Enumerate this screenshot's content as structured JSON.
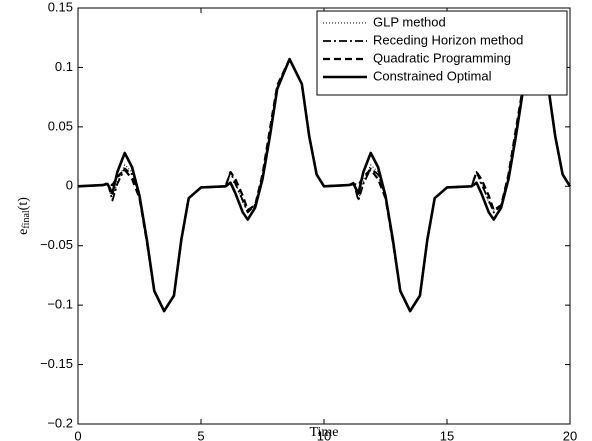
{
  "chart_data": {
    "type": "line",
    "xlabel": "Time",
    "ylabel": [
      "e",
      "final",
      "(t)"
    ],
    "x": [
      0,
      1,
      1.2,
      1.4,
      1.6,
      1.9,
      2.2,
      2.5,
      2.8,
      3.1,
      3.5,
      3.9,
      4.2,
      4.5,
      5,
      6,
      6.2,
      6.4,
      6.7,
      6.9,
      7.2,
      7.5,
      7.8,
      8.1,
      8.6,
      9.1,
      9.4,
      9.7,
      10,
      11,
      11.2,
      11.4,
      11.6,
      11.9,
      12.2,
      12.5,
      12.8,
      13.1,
      13.5,
      13.9,
      14.2,
      14.5,
      15,
      16,
      16.2,
      16.4,
      16.7,
      16.9,
      17.2,
      17.5,
      17.8,
      18.1,
      18.6,
      19.1,
      19.4,
      19.7,
      20
    ],
    "xlim": [
      0,
      20
    ],
    "xticks": [
      0,
      5,
      10,
      15,
      20
    ],
    "ylim": [
      -0.2,
      0.15
    ],
    "yticks": [
      {
        "value": -0.2,
        "label": "−0.2"
      },
      {
        "value": -0.15,
        "label": "−0.15"
      },
      {
        "value": -0.1,
        "label": "−0.1"
      },
      {
        "value": -0.05,
        "label": "−0.05"
      },
      0,
      0.05,
      0.1,
      0.15
    ],
    "legend": "upper right",
    "series": [
      {
        "name": "GLP method",
        "color": "#000000",
        "linestyle": "dotted",
        "values": [
          0,
          0.001,
          0.002,
          -0.012,
          0.004,
          0.018,
          0.012,
          -0.008,
          -0.045,
          -0.088,
          -0.105,
          -0.092,
          -0.045,
          -0.01,
          -0.001,
          0,
          0.002,
          0.004,
          -0.014,
          -0.02,
          -0.015,
          0.006,
          0.042,
          0.082,
          0.107,
          0.086,
          0.042,
          0.01,
          0,
          0.001,
          0.002,
          -0.012,
          0.004,
          0.018,
          0.012,
          -0.008,
          -0.045,
          -0.088,
          -0.105,
          -0.092,
          -0.045,
          -0.01,
          -0.001,
          0,
          0.002,
          0.004,
          -0.014,
          -0.02,
          -0.015,
          0.006,
          0.042,
          0.082,
          0.107,
          0.086,
          0.042,
          0.01,
          0
        ]
      },
      {
        "name": "Receding Horizon method",
        "color": "#000000",
        "linestyle": "dashdot",
        "values": [
          0,
          0.001,
          0.003,
          -0.012,
          0.002,
          0.015,
          0.01,
          -0.008,
          -0.046,
          -0.088,
          -0.105,
          -0.092,
          -0.045,
          -0.01,
          -0.001,
          0,
          0.012,
          0.002,
          -0.012,
          -0.022,
          -0.016,
          0.008,
          0.045,
          0.083,
          0.107,
          0.086,
          0.042,
          0.01,
          0,
          0.001,
          0.003,
          -0.012,
          0.002,
          0.015,
          0.01,
          -0.008,
          -0.046,
          -0.088,
          -0.105,
          -0.092,
          -0.045,
          -0.01,
          -0.001,
          0,
          0.012,
          0.002,
          -0.012,
          -0.022,
          -0.016,
          0.008,
          0.045,
          0.083,
          0.107,
          0.086,
          0.042,
          0.01,
          0
        ]
      },
      {
        "name": "Quadratic Programming",
        "color": "#000000",
        "linestyle": "dashed",
        "values": [
          0,
          0.001,
          0.002,
          0.001,
          0.008,
          0.014,
          0.006,
          -0.01,
          -0.047,
          -0.088,
          -0.105,
          -0.092,
          -0.045,
          -0.01,
          -0.001,
          0,
          0.012,
          0.006,
          -0.008,
          -0.02,
          -0.016,
          0.01,
          0.048,
          0.085,
          0.107,
          0.086,
          0.042,
          0.01,
          0,
          0.001,
          0.002,
          0.001,
          0.008,
          0.014,
          0.006,
          -0.01,
          -0.047,
          -0.088,
          -0.105,
          -0.092,
          -0.045,
          -0.01,
          -0.001,
          0,
          0.012,
          0.006,
          -0.008,
          -0.02,
          -0.016,
          0.01,
          0.048,
          0.085,
          0.107,
          0.086,
          0.042,
          0.01,
          0
        ]
      },
      {
        "name": "Constrained Optimal",
        "color": "#000000",
        "linestyle": "solid",
        "values": [
          0,
          0.001,
          0.002,
          -0.006,
          0.012,
          0.028,
          0.016,
          -0.008,
          -0.045,
          -0.088,
          -0.105,
          -0.092,
          -0.045,
          -0.01,
          -0.001,
          0,
          0.003,
          -0.006,
          -0.022,
          -0.028,
          -0.018,
          0.006,
          0.042,
          0.082,
          0.107,
          0.086,
          0.042,
          0.01,
          0,
          0.001,
          0.002,
          -0.006,
          0.012,
          0.028,
          0.016,
          -0.008,
          -0.045,
          -0.088,
          -0.105,
          -0.092,
          -0.045,
          -0.01,
          -0.001,
          0,
          0.003,
          -0.006,
          -0.022,
          -0.028,
          -0.018,
          0.006,
          0.042,
          0.082,
          0.107,
          0.086,
          0.042,
          0.01,
          0
        ]
      }
    ]
  }
}
